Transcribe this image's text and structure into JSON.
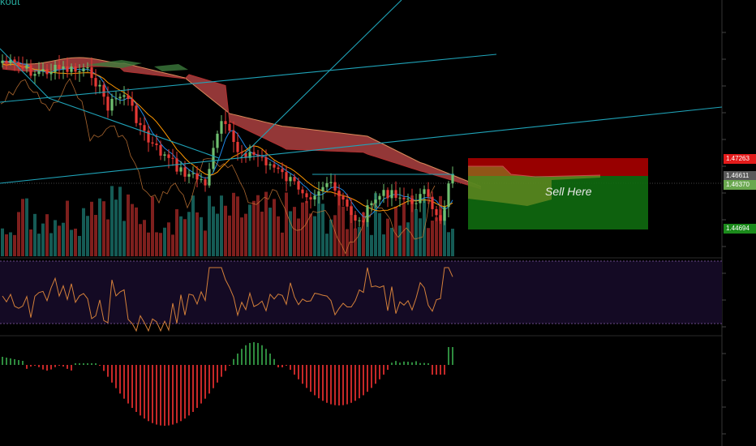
{
  "title": "kout",
  "annotation": "Sell Here",
  "price_tags": [
    {
      "label": "1.47263",
      "bg": "#e31b1b",
      "fg": "#ffffff"
    },
    {
      "label": "1.46611",
      "bg": "#5a5a5a",
      "fg": "#ffffff"
    },
    {
      "label": "1.46370",
      "bg": "#6aa84f",
      "fg": "#ffffff"
    },
    {
      "label": "1.44694",
      "bg": "#1b8a1b",
      "fg": "#ffffff"
    }
  ],
  "colors": {
    "up": "#26a69a",
    "up_candle": "#6fbf6f",
    "down": "#e53935",
    "cloud_bear": "#c44a4a",
    "cloud_bull": "#3c7a3c",
    "trendline": "#1fa3b8",
    "stop_zone": "#b30000",
    "target_zone": "#0f6b0f",
    "rsi_bg": "#140a24",
    "rsi_line": "#d4803a",
    "macd_up": "#2e8b3e",
    "macd_down": "#c62828"
  },
  "chart_data": {
    "type": "candlestick",
    "price_range": [
      1.44,
      1.496
    ],
    "price_labels": {
      "stop": 1.47263,
      "last": 1.46611,
      "entry": 1.4637,
      "target": 1.44694
    }
  }
}
